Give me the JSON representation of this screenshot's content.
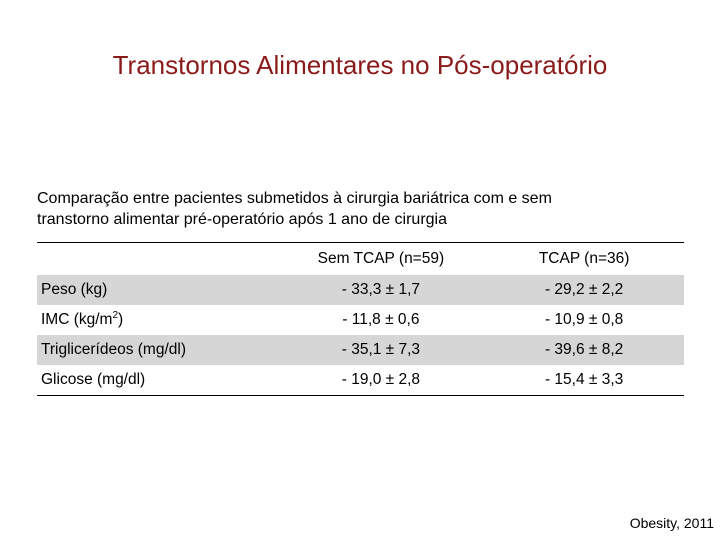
{
  "slide": {
    "title": "Transtornos Alimentares no Pós-operatório",
    "subtitle_line1": "Comparação entre pacientes submetidos à cirurgia bariátrica com e sem",
    "subtitle_line2": "transtorno alimentar pré-operatório após 1 ano de cirurgia",
    "source": "Obesity, 2011"
  },
  "table": {
    "headers": [
      "",
      "Sem TCAP (n=59)",
      "TCAP (n=36)"
    ],
    "rows": [
      {
        "label": "Peso (kg)",
        "sem_tcap": "- 33,3 ± 1,7",
        "tcap": "- 29,2 ± 2,2"
      },
      {
        "label_base": "IMC (kg/m",
        "label_sup": "2",
        "label_end": ")",
        "sem_tcap": "- 11,8 ± 0,6",
        "tcap": "- 10,9 ± 0,8"
      },
      {
        "label": "Triglicerídeos (mg/dl)",
        "sem_tcap": "- 35,1 ± 7,3",
        "tcap": "- 39,6 ± 8,2"
      },
      {
        "label": "Glicose (mg/dl)",
        "sem_tcap": "- 19,0 ± 2,8",
        "tcap": "- 15,4 ± 3,3"
      }
    ]
  }
}
